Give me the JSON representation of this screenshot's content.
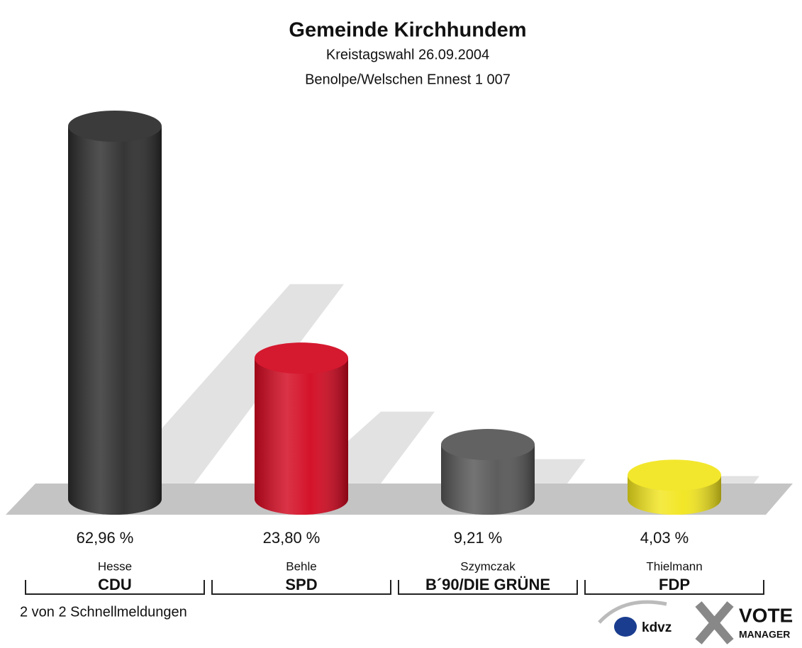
{
  "chart_data": {
    "type": "bar",
    "title": "Gemeinde Kirchhundem",
    "subtitle": "Kreistagswahl 26.09.2004",
    "subtitle2": "Benolpe/Welschen Ennest 1 007",
    "categories": [
      "Hesse",
      "Behle",
      "Szymczak",
      "Thielmann"
    ],
    "parties": [
      "CDU",
      "SPD",
      "B´90/DIE GRÜNE",
      "FDP"
    ],
    "values": [
      62.96,
      23.8,
      9.21,
      4.03
    ],
    "value_labels": [
      "62,96 %",
      "23,80 %",
      "9,21 %",
      "4,03 %"
    ],
    "colors": [
      "#2b2b2b",
      "#d2061e",
      "#555555",
      "#f2e51c"
    ],
    "footer": "2 von 2 Schnellmeldungen",
    "logos": [
      "kdvz",
      "VOTE",
      "MANAGER"
    ]
  }
}
